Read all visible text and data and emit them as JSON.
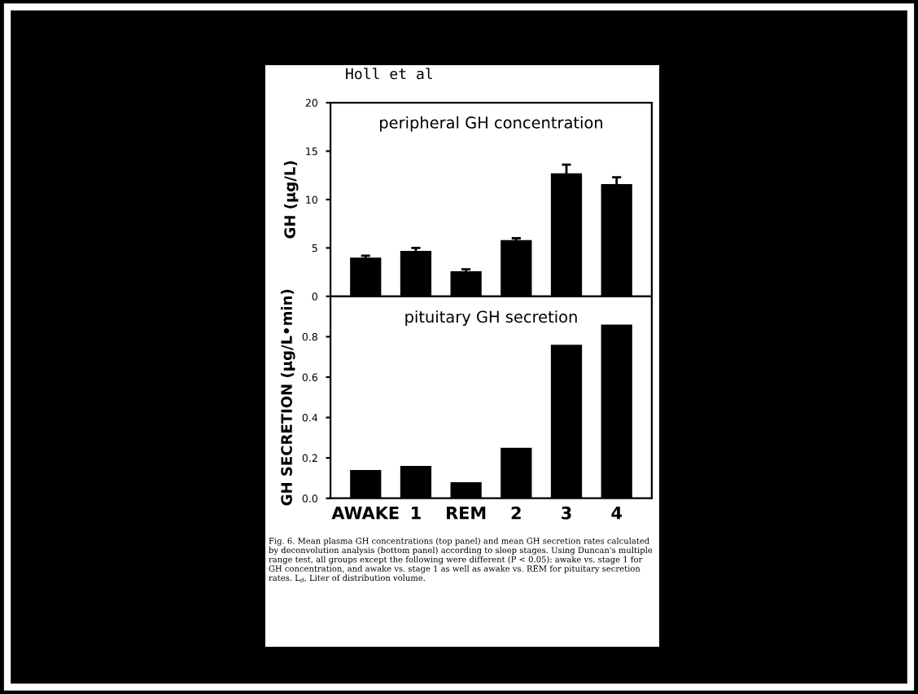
{
  "chart_data": [
    {
      "type": "bar",
      "title": "peripheral GH concentration",
      "ylabel": "GH (μg/L)",
      "annotations": [
        "Holl et al"
      ],
      "categories": [
        null,
        null,
        null,
        null,
        null,
        null
      ],
      "values": [
        4.0,
        4.7,
        2.6,
        5.8,
        12.7,
        11.6
      ],
      "errors": [
        0.2,
        0.3,
        0.2,
        0.2,
        0.9,
        0.7
      ],
      "color": "#000000",
      "ylim": [
        0,
        20
      ],
      "yticks": [
        0,
        5,
        10,
        15,
        20
      ],
      "tick_labels": "y",
      "grid": false,
      "legend": false
    },
    {
      "type": "bar",
      "title": "pituitary GH secretion",
      "ylabel": "GH SECRETION (μg/L•min)",
      "annotations": [
        "Fig. 6. Mean plasma GH concentrations (top panel) and mean GH secretion rates calculated by deconvolution analysis (bottom panel) according to sleep stages. Using Duncan's multiple range test, all groups except the following were different (P < 0.05): awake vs. stage 1 for GH concentration, and awake vs. stage 1 as well as awake vs. REM for pituitary secretion rates. L$_{d}$, Liter of distribution volume."
      ],
      "categories": [
        "AWAKE",
        "1",
        "REM",
        "2",
        "3",
        "4"
      ],
      "values": [
        0.14,
        0.16,
        0.08,
        0.25,
        0.76,
        0.86
      ],
      "color": "#000000",
      "ylim": [
        0,
        1.0
      ],
      "yticks": [
        {
          "value": 0,
          "label": "0.0"
        },
        0.2,
        0.4,
        0.6,
        0.8
      ],
      "grid": false,
      "legend": false
    }
  ]
}
